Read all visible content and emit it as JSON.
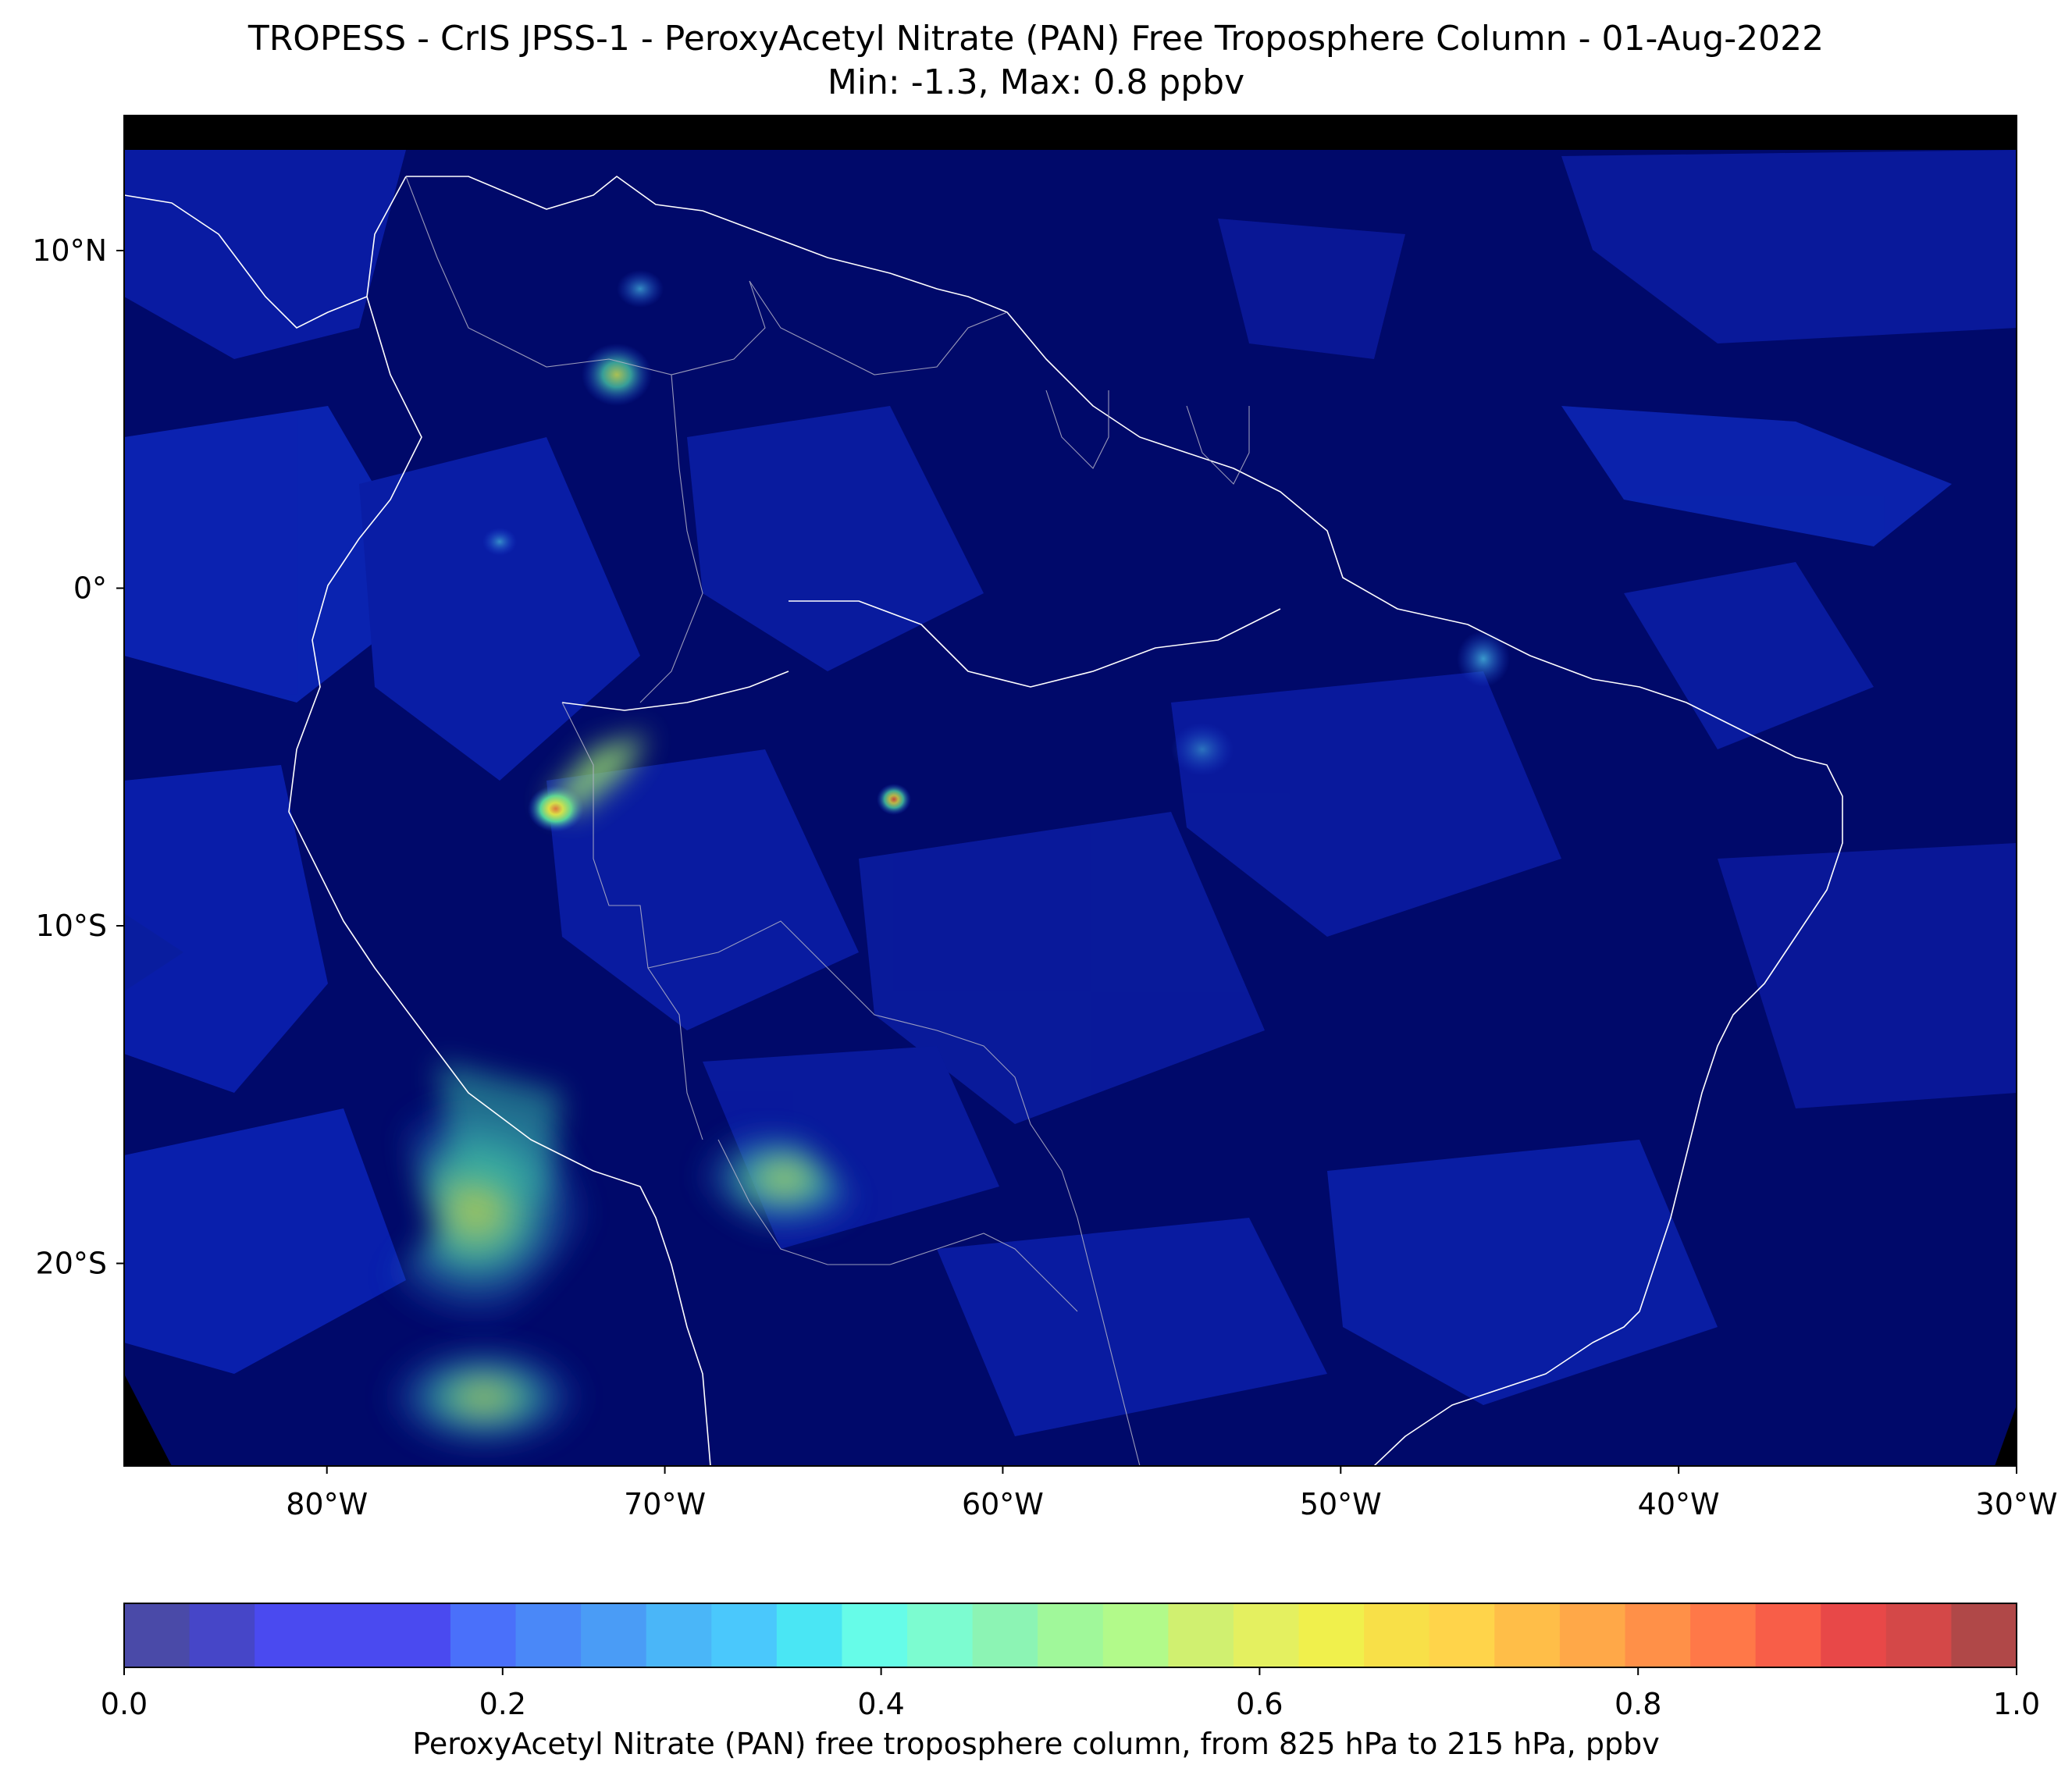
{
  "title": "TROPESS - CrIS JPSS-1 - PeroxyAcetyl Nitrate (PAN) Free Troposphere Column - 01-Aug-2022",
  "subtitle": "Min: -1.3, Max: 0.8 ppbv",
  "map": {
    "lon_range": [
      -86,
      -30
    ],
    "lat_range": [
      -26,
      14
    ],
    "background_color": "#00096a",
    "nodata_color": "#000000",
    "coastline_color": "#ffffff",
    "lon_ticks": [
      {
        "value": -80,
        "label": "80°W"
      },
      {
        "value": -70,
        "label": "70°W"
      },
      {
        "value": -60,
        "label": "60°W"
      },
      {
        "value": -50,
        "label": "50°W"
      },
      {
        "value": -40,
        "label": "40°W"
      },
      {
        "value": -30,
        "label": "30°W"
      }
    ],
    "lat_ticks": [
      {
        "value": 10,
        "label": "10°N"
      },
      {
        "value": 0,
        "label": "0°"
      },
      {
        "value": -10,
        "label": "10°S"
      },
      {
        "value": -20,
        "label": "20°S"
      }
    ],
    "hotspots": [
      {
        "lon": -73.5,
        "lat": -6.8,
        "value": 0.8
      },
      {
        "lon": -71.5,
        "lat": -5.0,
        "value": 0.55
      },
      {
        "lon": -75.5,
        "lat": -20.0,
        "value": 0.55
      },
      {
        "lon": -74.5,
        "lat": -17.5,
        "value": 0.45
      },
      {
        "lon": -76.5,
        "lat": -24.0,
        "value": 0.5
      },
      {
        "lon": -66.5,
        "lat": -17.5,
        "value": 0.5
      },
      {
        "lon": -71.5,
        "lat": 6.2,
        "value": 0.45
      },
      {
        "lon": -63.5,
        "lat": -6.2,
        "value": 0.55
      },
      {
        "lon": -45.0,
        "lat": -2.0,
        "value": 0.35
      },
      {
        "lon": -71.0,
        "lat": 9.0,
        "value": 0.3
      }
    ]
  },
  "colorbar": {
    "label": "PeroxyAcetyl Nitrate (PAN) free troposphere column, from 825 hPa to 215 hPa, ppbv",
    "range": [
      0.0,
      1.0
    ],
    "ticks": [
      "0.0",
      "0.2",
      "0.4",
      "0.6",
      "0.8",
      "1.0"
    ],
    "tick_values": [
      0.0,
      0.2,
      0.4,
      0.6,
      0.8,
      1.0
    ],
    "colors": [
      "#4a4aa8",
      "#4646c8",
      "#4a4af0",
      "#4a4af0",
      "#4a4af0",
      "#4a70fa",
      "#4a88f8",
      "#4a9cf6",
      "#4ab6f8",
      "#4ac8fc",
      "#4ae6f4",
      "#66fce8",
      "#7cfcd0",
      "#8cf4b4",
      "#a0f89a",
      "#b2fa8a",
      "#d0f070",
      "#e4f060",
      "#f0f04c",
      "#f8e048",
      "#ffd44a",
      "#ffbe48",
      "#ffa848",
      "#ff9048",
      "#ff7848",
      "#f85e48",
      "#e84848",
      "#d44848",
      "#b04848"
    ]
  }
}
